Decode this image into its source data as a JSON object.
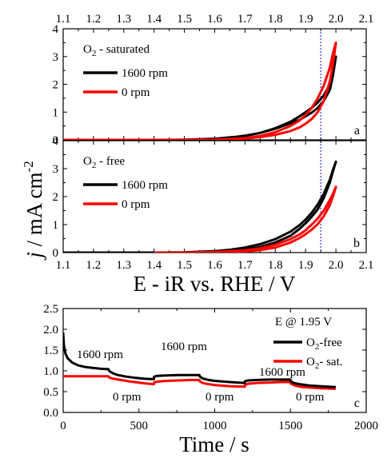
{
  "chart_data": [
    {
      "type": "line",
      "panel": "a",
      "panel_label": "a",
      "condition": {
        "base": "O",
        "sub": "2",
        "rest": " - saturated"
      },
      "x_top_ticks": [
        "1.1",
        "1.2",
        "1.3",
        "1.4",
        "1.5",
        "1.6",
        "1.7",
        "1.8",
        "1.9",
        "2.0",
        "2.1"
      ],
      "xlim": [
        1.1,
        2.1
      ],
      "ylim": [
        0,
        4
      ],
      "y_ticks": [
        "0",
        "1",
        "2",
        "3",
        "4"
      ],
      "reference_line_x": 1.95,
      "series": [
        {
          "name": "1600 rpm",
          "color": "#000000",
          "x": [
            1.1,
            1.4,
            1.5,
            1.6,
            1.65,
            1.7,
            1.75,
            1.8,
            1.85,
            1.88,
            1.9,
            1.92,
            1.94,
            1.96,
            1.98,
            1.99,
            2.0,
            1.99,
            1.98,
            1.96,
            1.94,
            1.92,
            1.9,
            1.88,
            1.85,
            1.8,
            1.75,
            1.7,
            1.6,
            1.5,
            1.4,
            1.1
          ],
          "y": [
            0,
            0,
            0.01,
            0.04,
            0.08,
            0.15,
            0.25,
            0.4,
            0.6,
            0.72,
            0.85,
            0.98,
            1.15,
            1.4,
            1.8,
            2.3,
            3.0,
            2.5,
            2.0,
            1.6,
            1.35,
            1.15,
            1.0,
            0.85,
            0.65,
            0.42,
            0.25,
            0.14,
            0.04,
            0.01,
            0,
            0
          ]
        },
        {
          "name": "0 rpm",
          "color": "#ff0000",
          "x": [
            1.1,
            1.5,
            1.6,
            1.7,
            1.75,
            1.8,
            1.85,
            1.88,
            1.9,
            1.92,
            1.94,
            1.96,
            1.98,
            1.99,
            2.0,
            1.99,
            1.98,
            1.96,
            1.94,
            1.92,
            1.9,
            1.88,
            1.85,
            1.8,
            1.75,
            1.7,
            1.6,
            1.5,
            1.1
          ],
          "y": [
            0,
            0,
            0.01,
            0.05,
            0.1,
            0.18,
            0.32,
            0.45,
            0.58,
            0.75,
            1.0,
            1.4,
            2.1,
            2.7,
            3.5,
            3.1,
            2.6,
            1.95,
            1.5,
            1.15,
            0.9,
            0.7,
            0.5,
            0.28,
            0.14,
            0.06,
            0.01,
            0,
            0
          ]
        }
      ]
    },
    {
      "type": "line",
      "panel": "b",
      "panel_label": "b",
      "condition": {
        "base": "O",
        "sub": "2",
        "rest": " - free"
      },
      "x_bottom_ticks": [
        "1.1",
        "1.2",
        "1.3",
        "1.4",
        "1.5",
        "1.6",
        "1.7",
        "1.8",
        "1.9",
        "2.0",
        "2.1"
      ],
      "xlim": [
        1.1,
        2.1
      ],
      "ylim": [
        0,
        4
      ],
      "y_ticks": [
        "0",
        "1",
        "2",
        "3",
        "4"
      ],
      "reference_line_x": 1.95,
      "series": [
        {
          "name": "1600 rpm",
          "color": "#000000",
          "x": [
            1.1,
            1.4,
            1.5,
            1.6,
            1.65,
            1.7,
            1.75,
            1.8,
            1.85,
            1.88,
            1.9,
            1.92,
            1.94,
            1.96,
            1.98,
            1.99,
            2.0,
            1.99,
            1.98,
            1.96,
            1.94,
            1.92,
            1.9,
            1.88,
            1.85,
            1.8,
            1.75,
            1.7,
            1.6,
            1.5,
            1.4
          ],
          "y": [
            0,
            0,
            0.01,
            0.05,
            0.1,
            0.18,
            0.3,
            0.48,
            0.75,
            0.98,
            1.18,
            1.42,
            1.72,
            2.1,
            2.6,
            2.95,
            3.25,
            2.9,
            2.5,
            1.95,
            1.55,
            1.28,
            1.05,
            0.85,
            0.6,
            0.36,
            0.2,
            0.1,
            0.03,
            0.01,
            0
          ]
        },
        {
          "name": "0 rpm",
          "color": "#ff0000",
          "x": [
            1.4,
            1.5,
            1.6,
            1.7,
            1.75,
            1.8,
            1.85,
            1.88,
            1.9,
            1.92,
            1.94,
            1.96,
            1.98,
            1.99,
            2.0,
            1.99,
            1.98,
            1.96,
            1.94,
            1.92,
            1.9,
            1.88,
            1.85,
            1.8,
            1.75,
            1.7,
            1.6,
            1.5,
            1.4
          ],
          "y": [
            0,
            0,
            0.02,
            0.08,
            0.15,
            0.28,
            0.48,
            0.65,
            0.8,
            1.0,
            1.22,
            1.5,
            1.88,
            2.1,
            2.35,
            2.0,
            1.7,
            1.3,
            1.02,
            0.82,
            0.66,
            0.52,
            0.36,
            0.18,
            0.09,
            0.04,
            0.01,
            0,
            0
          ]
        }
      ]
    },
    {
      "type": "line",
      "panel": "c",
      "panel_label": "c",
      "xlabel": "Time / s",
      "xlim": [
        0,
        2000
      ],
      "ylim": [
        0,
        2.5
      ],
      "x_ticks": [
        "0",
        "500",
        "1000",
        "1500",
        "2000"
      ],
      "y_ticks": [
        "0.0",
        "0.5",
        "1.0",
        "1.5",
        "2.0",
        "2.5"
      ],
      "legend_title": "E @ 1.95 V",
      "legend_position": "top-right",
      "annotations_1600": [
        "1600 rpm",
        "1600 rpm",
        "1600 rpm"
      ],
      "annotations_0": [
        "0 rpm",
        "0 rpm",
        "0 rpm"
      ],
      "series": [
        {
          "name": "O2-free",
          "legend": {
            "base": "O",
            "sub": "2",
            "rest": "-free"
          },
          "color": "#000000",
          "x": [
            0,
            5,
            15,
            30,
            60,
            100,
            150,
            200,
            250,
            299,
            300,
            310,
            330,
            360,
            420,
            480,
            540,
            599,
            600,
            620,
            680,
            760,
            840,
            899,
            900,
            920,
            960,
            1000,
            1100,
            1199,
            1200,
            1220,
            1280,
            1360,
            1440,
            1499,
            1500,
            1520,
            1560,
            1620,
            1700,
            1799
          ],
          "y": [
            1.92,
            1.62,
            1.42,
            1.3,
            1.2,
            1.13,
            1.09,
            1.07,
            1.05,
            1.04,
            1.02,
            0.98,
            0.94,
            0.9,
            0.86,
            0.83,
            0.81,
            0.8,
            0.86,
            0.88,
            0.89,
            0.9,
            0.9,
            0.9,
            0.87,
            0.82,
            0.78,
            0.76,
            0.73,
            0.71,
            0.75,
            0.77,
            0.78,
            0.79,
            0.79,
            0.79,
            0.76,
            0.71,
            0.68,
            0.65,
            0.63,
            0.61
          ]
        },
        {
          "name": "O2- sat.",
          "legend": {
            "base": "O",
            "sub": "2",
            "rest": "- sat."
          },
          "color": "#ff0000",
          "x": [
            0,
            10,
            50,
            100,
            200,
            299,
            300,
            320,
            380,
            450,
            540,
            599,
            600,
            620,
            680,
            760,
            840,
            899,
            900,
            920,
            960,
            1000,
            1100,
            1199,
            1200,
            1220,
            1280,
            1360,
            1440,
            1499,
            1500,
            1520,
            1560,
            1620,
            1700,
            1799
          ],
          "y": [
            0.87,
            0.87,
            0.87,
            0.87,
            0.87,
            0.87,
            0.85,
            0.82,
            0.78,
            0.74,
            0.7,
            0.68,
            0.72,
            0.74,
            0.76,
            0.77,
            0.78,
            0.78,
            0.75,
            0.71,
            0.68,
            0.66,
            0.63,
            0.62,
            0.66,
            0.69,
            0.71,
            0.72,
            0.73,
            0.73,
            0.7,
            0.66,
            0.62,
            0.6,
            0.58,
            0.57
          ]
        }
      ]
    }
  ],
  "figure": {
    "ylabel_italic": "j",
    "ylabel_rest": " / mA cm",
    "ylabel_sup": "-2",
    "xlabel_ab": "E - iR vs. RHE / V"
  }
}
